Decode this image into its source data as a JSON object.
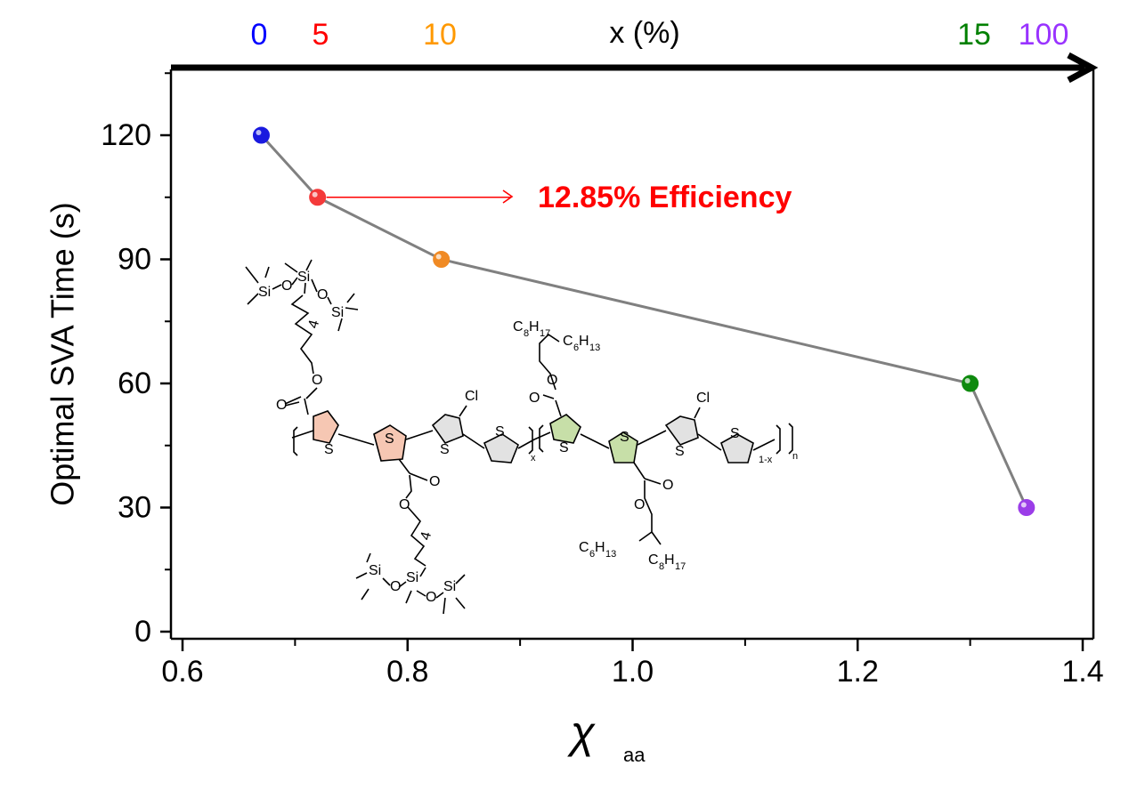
{
  "chart_data": {
    "type": "scatter",
    "title": "",
    "xlabel_symbol": "χ",
    "xlabel_subscript": "aa",
    "ylabel": "Optimal SVA Time (s)",
    "xlim": [
      0.6,
      1.4
    ],
    "ylim": [
      0,
      135
    ],
    "xticks": [
      "0.6",
      "0.8",
      "1.0",
      "1.2",
      "1.4"
    ],
    "yticks": [
      "0",
      "30",
      "60",
      "90",
      "120"
    ],
    "grid": false,
    "connected": true,
    "line_color": "#808080",
    "series": [
      {
        "points": [
          {
            "x": 0.67,
            "y": 120,
            "color": "#1a1adf"
          },
          {
            "x": 0.72,
            "y": 105,
            "color": "#f43a3a"
          },
          {
            "x": 0.83,
            "y": 90,
            "color": "#f08a24"
          },
          {
            "x": 1.3,
            "y": 60,
            "color": "#0e8a0e"
          },
          {
            "x": 1.35,
            "y": 30,
            "color": "#9b3de8"
          }
        ]
      }
    ],
    "top_axis": {
      "label": "x (%)",
      "categories": [
        {
          "label": "0",
          "color": "#0000ff"
        },
        {
          "label": "5",
          "color": "#ff0000"
        },
        {
          "label": "10",
          "color": "#ff9900"
        },
        {
          "label": "15",
          "color": "#008000"
        },
        {
          "label": "100",
          "color": "#9933ff"
        }
      ]
    },
    "annotation": {
      "text": "12.85% Efficiency",
      "color": "#ff0000",
      "points_to_x": 0.72
    }
  },
  "molecule": {
    "labels": {
      "si": "Si",
      "o": "O",
      "s": "S",
      "cl": "Cl",
      "c": "C",
      "h": "H",
      "n8": "8",
      "n17": "17",
      "n6": "6",
      "n13": "13",
      "four": "4",
      "x": "x",
      "one_minus_x": "1-x",
      "n": "n"
    }
  }
}
